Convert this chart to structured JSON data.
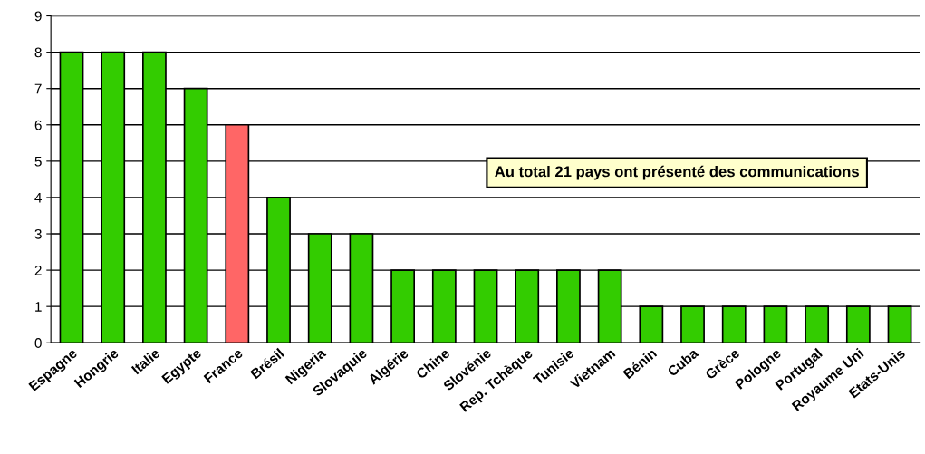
{
  "chart_data": {
    "type": "bar",
    "categories": [
      "Espagne",
      "Hongrie",
      "Italie",
      "Egypte",
      "France",
      "Brésil",
      "Nigeria",
      "Slovaquie",
      "Algérie",
      "Chine",
      "Slovénie",
      "Rep. Tchèque",
      "Tunisie",
      "Vietnam",
      "Bénin",
      "Cuba",
      "Grèce",
      "Pologne",
      "Portugal",
      "Royaume Uni",
      "Etats-Unis"
    ],
    "values": [
      8,
      8,
      8,
      7,
      6,
      4,
      3,
      3,
      2,
      2,
      2,
      2,
      2,
      2,
      1,
      1,
      1,
      1,
      1,
      1,
      1
    ],
    "colors": [
      "#33cc00",
      "#33cc00",
      "#33cc00",
      "#33cc00",
      "#ff6666",
      "#33cc00",
      "#33cc00",
      "#33cc00",
      "#33cc00",
      "#33cc00",
      "#33cc00",
      "#33cc00",
      "#33cc00",
      "#33cc00",
      "#33cc00",
      "#33cc00",
      "#33cc00",
      "#33cc00",
      "#33cc00",
      "#33cc00",
      "#33cc00"
    ],
    "ylim": [
      0,
      9
    ],
    "yticks": [
      0,
      1,
      2,
      3,
      4,
      5,
      6,
      7,
      8,
      9
    ],
    "grid": "y",
    "annotations": [
      "Au total 21 pays ont présenté des communications"
    ]
  }
}
